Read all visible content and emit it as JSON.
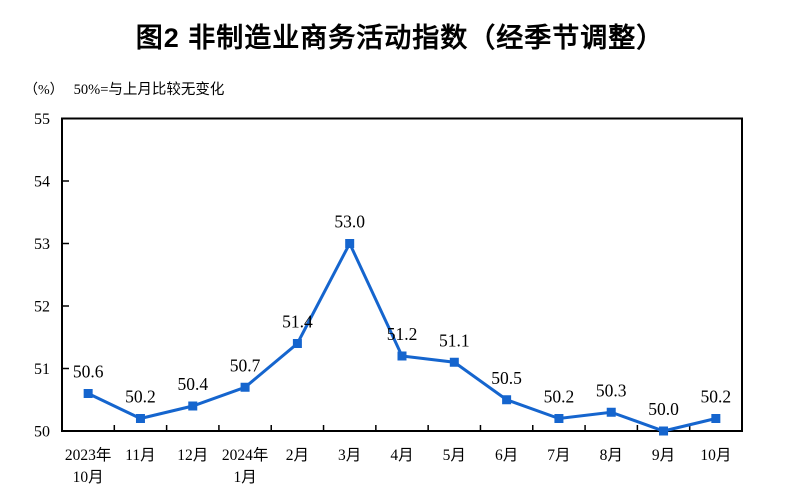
{
  "title": "图2 非制造业商务活动指数（经季节调整）",
  "subtitle": {
    "unit": "（%）",
    "note": "50%=与上月比较无变化"
  },
  "chart_data": {
    "type": "line",
    "title": "图2 非制造业商务活动指数（经季节调整）",
    "ylabel": "（%）",
    "annotation": "50%=与上月比较无变化",
    "categories": [
      [
        "2023年",
        "10月"
      ],
      [
        "11月"
      ],
      [
        "12月"
      ],
      [
        "2024年",
        "1月"
      ],
      [
        "2月"
      ],
      [
        "3月"
      ],
      [
        "4月"
      ],
      [
        "5月"
      ],
      [
        "6月"
      ],
      [
        "7月"
      ],
      [
        "8月"
      ],
      [
        "9月"
      ],
      [
        "10月"
      ]
    ],
    "values": [
      50.6,
      50.2,
      50.4,
      50.7,
      51.4,
      53.0,
      51.2,
      51.1,
      50.5,
      50.2,
      50.3,
      50.0,
      50.2
    ],
    "data_labels": [
      "50.6",
      "50.2",
      "50.4",
      "50.7",
      "51.4",
      "53.0",
      "51.2",
      "51.1",
      "50.5",
      "50.2",
      "50.3",
      "50.0",
      "50.2"
    ],
    "ylim": [
      50,
      55
    ],
    "ytick_step": 1,
    "ytick_labels": [
      "50",
      "51",
      "52",
      "53",
      "54",
      "55"
    ],
    "grid": false,
    "legend_position": "none",
    "line_color": "#1565CE",
    "marker": "square",
    "axis_color": "#000000"
  }
}
